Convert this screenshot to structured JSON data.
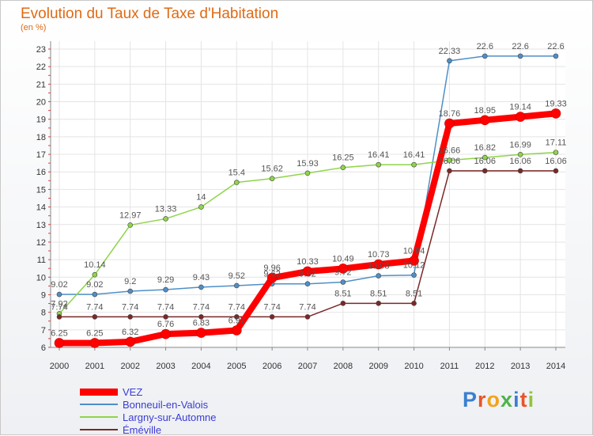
{
  "title": "Evolution du Taux de Taxe d'Habitation",
  "unit_label": "(en %)",
  "logo_text": "Proxiti",
  "chart_data": {
    "type": "line",
    "x": [
      2000,
      2001,
      2002,
      2003,
      2004,
      2005,
      2006,
      2007,
      2008,
      2009,
      2010,
      2011,
      2012,
      2013,
      2014
    ],
    "ylim": [
      6,
      23
    ],
    "yticks": [
      6,
      7,
      8,
      9,
      10,
      11,
      12,
      13,
      14,
      15,
      16,
      17,
      18,
      19,
      20,
      21,
      22,
      23
    ],
    "legend_position": "bottom-left",
    "series": [
      {
        "name": "VEZ",
        "color": "#ff0000",
        "width": 8,
        "values": [
          6.25,
          6.25,
          6.32,
          6.76,
          6.83,
          6.97,
          9.96,
          10.33,
          10.49,
          10.73,
          10.94,
          18.76,
          18.95,
          19.14,
          19.33
        ],
        "labels": [
          "6.25",
          "6.25",
          "6.32",
          "6.76",
          "6.83",
          "6.97",
          "9.96",
          "10.33",
          "10.49",
          "10.73",
          "10.94",
          "18.76",
          "18.95",
          "19.14",
          "19.33"
        ]
      },
      {
        "name": "Bonneuil-en-Valois",
        "color": "#4f8fc7",
        "width": 1.5,
        "values": [
          9.02,
          9.02,
          9.2,
          9.29,
          9.43,
          9.52,
          9.62,
          9.62,
          9.72,
          10.08,
          10.12,
          22.33,
          22.6,
          22.6,
          22.6
        ],
        "labels": [
          "9.02",
          "9.02",
          "9.2",
          "9.29",
          "9.43",
          "9.52",
          "9.62",
          "9.62",
          "9.72",
          "10.08",
          "10.12",
          "22.33",
          "22.6",
          "22.6",
          "22.6"
        ]
      },
      {
        "name": "Largny-sur-Automne",
        "color": "#8fd44a",
        "width": 1.5,
        "values": [
          7.92,
          10.14,
          12.97,
          13.33,
          14,
          15.4,
          15.62,
          15.93,
          16.25,
          16.41,
          16.41,
          16.66,
          16.82,
          16.99,
          17.11
        ],
        "labels": [
          "7.92",
          "10.14",
          "12.97",
          "13.33",
          "14",
          "15.4",
          "15.62",
          "15.93",
          "16.25",
          "16.41",
          "16.41",
          "16.66",
          "16.82",
          "16.99",
          "17.11"
        ]
      },
      {
        "name": "Éméville",
        "color": "#7b2828",
        "width": 1.5,
        "values": [
          7.74,
          7.74,
          7.74,
          7.74,
          7.74,
          7.74,
          7.74,
          7.74,
          8.51,
          8.51,
          8.51,
          16.06,
          16.06,
          16.06,
          16.06
        ],
        "labels": [
          "7.74",
          "7.74",
          "7.74",
          "7.74",
          "7.74",
          "7.74",
          "7.74",
          "7.74",
          "8.51",
          "8.51",
          "8.51",
          "16.06",
          "16.06",
          "16.06",
          "16.06"
        ]
      }
    ]
  }
}
